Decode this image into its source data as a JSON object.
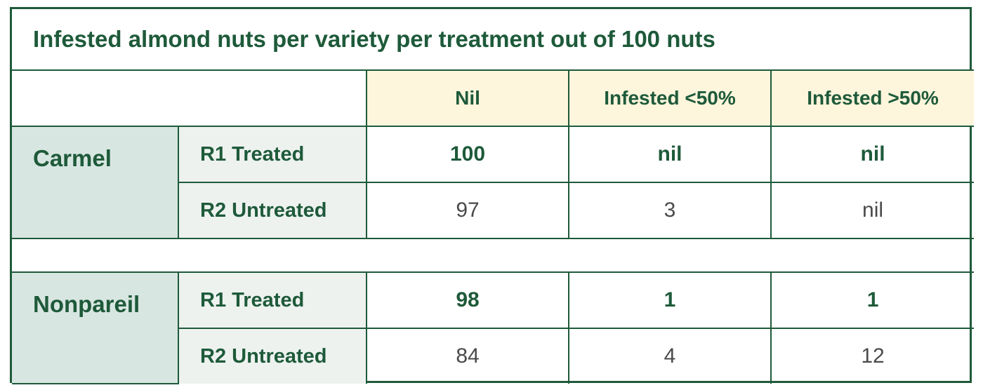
{
  "chart_data": {
    "type": "table",
    "title": "Infested almond nuts per variety per treatment out of 100 nuts",
    "columns": [
      "Nil",
      "Infested <50%",
      "Infested >50%"
    ],
    "groups": [
      {
        "variety": "Carmel",
        "rows": [
          {
            "treatment": "R1 Treated",
            "values": [
              "100",
              "nil",
              "nil"
            ]
          },
          {
            "treatment": "R2 Untreated",
            "values": [
              "97",
              "3",
              "nil"
            ]
          }
        ]
      },
      {
        "variety": "Nonpareil",
        "rows": [
          {
            "treatment": "R1 Treated",
            "values": [
              "98",
              "1",
              "1"
            ]
          },
          {
            "treatment": "R2 Untreated",
            "values": [
              "84",
              "4",
              "12"
            ]
          }
        ]
      }
    ]
  },
  "colors": {
    "border": "#1e5a3a",
    "text_green": "#1e5a3a",
    "text_grey": "#4a4a4a",
    "header_fill": "#fdf5dc",
    "variety_fill": "#d8e6e1",
    "treatment_fill": "#edf2ef"
  }
}
